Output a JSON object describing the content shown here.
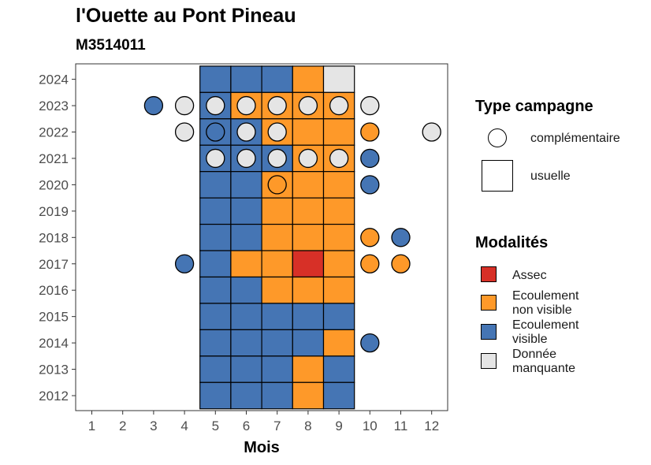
{
  "chart_data": {
    "type": "heatmap",
    "title": "l'Ouette au Pont Pineau",
    "subtitle": "M3514011",
    "xlabel": "Mois",
    "ylabel": "",
    "x_ticks": [
      1,
      2,
      3,
      4,
      5,
      6,
      7,
      8,
      9,
      10,
      11,
      12
    ],
    "y_ticks": [
      2012,
      2013,
      2014,
      2015,
      2016,
      2017,
      2018,
      2019,
      2020,
      2021,
      2022,
      2023,
      2024
    ],
    "colors": {
      "Assec": "#d73027",
      "Ecoulement non visible": "#fe9929",
      "Ecoulement visible": "#4575b4",
      "Donnée manquante": "#e5e5e5"
    },
    "usuelle": [
      {
        "year": 2024,
        "values": [
          "Ecoulement visible",
          "Ecoulement visible",
          "Ecoulement visible",
          "Ecoulement non visible",
          "Donnée manquante"
        ]
      },
      {
        "year": 2023,
        "values": [
          "Ecoulement visible",
          "Ecoulement non visible",
          "Ecoulement non visible",
          "Ecoulement non visible",
          "Ecoulement non visible"
        ]
      },
      {
        "year": 2022,
        "values": [
          "Ecoulement visible",
          "Ecoulement visible",
          "Ecoulement non visible",
          "Ecoulement non visible",
          "Ecoulement non visible"
        ]
      },
      {
        "year": 2021,
        "values": [
          "Ecoulement visible",
          "Ecoulement visible",
          "Ecoulement visible",
          "Ecoulement non visible",
          "Ecoulement non visible"
        ]
      },
      {
        "year": 2020,
        "values": [
          "Ecoulement visible",
          "Ecoulement visible",
          "Ecoulement non visible",
          "Ecoulement non visible",
          "Ecoulement non visible"
        ]
      },
      {
        "year": 2019,
        "values": [
          "Ecoulement visible",
          "Ecoulement visible",
          "Ecoulement non visible",
          "Ecoulement non visible",
          "Ecoulement non visible"
        ]
      },
      {
        "year": 2018,
        "values": [
          "Ecoulement visible",
          "Ecoulement visible",
          "Ecoulement non visible",
          "Ecoulement non visible",
          "Ecoulement non visible"
        ]
      },
      {
        "year": 2017,
        "values": [
          "Ecoulement visible",
          "Ecoulement non visible",
          "Ecoulement non visible",
          "Assec",
          "Ecoulement non visible"
        ]
      },
      {
        "year": 2016,
        "values": [
          "Ecoulement visible",
          "Ecoulement visible",
          "Ecoulement non visible",
          "Ecoulement non visible",
          "Ecoulement non visible"
        ]
      },
      {
        "year": 2015,
        "values": [
          "Ecoulement visible",
          "Ecoulement visible",
          "Ecoulement visible",
          "Ecoulement visible",
          "Ecoulement visible"
        ]
      },
      {
        "year": 2014,
        "values": [
          "Ecoulement visible",
          "Ecoulement visible",
          "Ecoulement visible",
          "Ecoulement visible",
          "Ecoulement non visible"
        ]
      },
      {
        "year": 2013,
        "values": [
          "Ecoulement visible",
          "Ecoulement visible",
          "Ecoulement visible",
          "Ecoulement non visible",
          "Ecoulement visible"
        ]
      },
      {
        "year": 2012,
        "values": [
          "Ecoulement visible",
          "Ecoulement visible",
          "Ecoulement visible",
          "Ecoulement non visible",
          "Ecoulement visible"
        ]
      }
    ],
    "usuelle_months": [
      5,
      6,
      7,
      8,
      9
    ],
    "complementaire": [
      {
        "year": 2023,
        "month": 3,
        "value": "Ecoulement visible"
      },
      {
        "year": 2023,
        "month": 4,
        "value": "Donnée manquante"
      },
      {
        "year": 2023,
        "month": 5,
        "value": "Donnée manquante"
      },
      {
        "year": 2023,
        "month": 6,
        "value": "Donnée manquante"
      },
      {
        "year": 2023,
        "month": 7,
        "value": "Donnée manquante"
      },
      {
        "year": 2023,
        "month": 8,
        "value": "Donnée manquante"
      },
      {
        "year": 2023,
        "month": 9,
        "value": "Donnée manquante"
      },
      {
        "year": 2023,
        "month": 10,
        "value": "Donnée manquante"
      },
      {
        "year": 2022,
        "month": 4,
        "value": "Donnée manquante"
      },
      {
        "year": 2022,
        "month": 5,
        "value": "Ecoulement visible"
      },
      {
        "year": 2022,
        "month": 6,
        "value": "Donnée manquante"
      },
      {
        "year": 2022,
        "month": 7,
        "value": "Donnée manquante"
      },
      {
        "year": 2022,
        "month": 10,
        "value": "Ecoulement non visible"
      },
      {
        "year": 2022,
        "month": 12,
        "value": "Donnée manquante"
      },
      {
        "year": 2021,
        "month": 5,
        "value": "Donnée manquante"
      },
      {
        "year": 2021,
        "month": 6,
        "value": "Donnée manquante"
      },
      {
        "year": 2021,
        "month": 7,
        "value": "Donnée manquante"
      },
      {
        "year": 2021,
        "month": 8,
        "value": "Donnée manquante"
      },
      {
        "year": 2021,
        "month": 9,
        "value": "Donnée manquante"
      },
      {
        "year": 2021,
        "month": 10,
        "value": "Ecoulement visible"
      },
      {
        "year": 2020,
        "month": 7,
        "value": "Ecoulement non visible"
      },
      {
        "year": 2020,
        "month": 10,
        "value": "Ecoulement visible"
      },
      {
        "year": 2018,
        "month": 10,
        "value": "Ecoulement non visible"
      },
      {
        "year": 2018,
        "month": 11,
        "value": "Ecoulement visible"
      },
      {
        "year": 2017,
        "month": 4,
        "value": "Ecoulement visible"
      },
      {
        "year": 2017,
        "month": 10,
        "value": "Ecoulement non visible"
      },
      {
        "year": 2017,
        "month": 11,
        "value": "Ecoulement non visible"
      },
      {
        "year": 2014,
        "month": 10,
        "value": "Ecoulement visible"
      }
    ],
    "legend": {
      "type_title": "Type campagne",
      "type_items": [
        {
          "label": "complémentaire",
          "shape": "circle"
        },
        {
          "label": "usuelle",
          "shape": "square"
        }
      ],
      "modalites_title": "Modalités",
      "modalites_items": [
        {
          "label": "Assec",
          "key": "Assec"
        },
        {
          "label": "Ecoulement\nnon visible",
          "key": "Ecoulement non visible"
        },
        {
          "label": "Ecoulement\nvisible",
          "key": "Ecoulement visible"
        },
        {
          "label": "Donnée\nmanquante",
          "key": "Donnée manquante"
        }
      ],
      "position": "right"
    },
    "grid": false
  }
}
